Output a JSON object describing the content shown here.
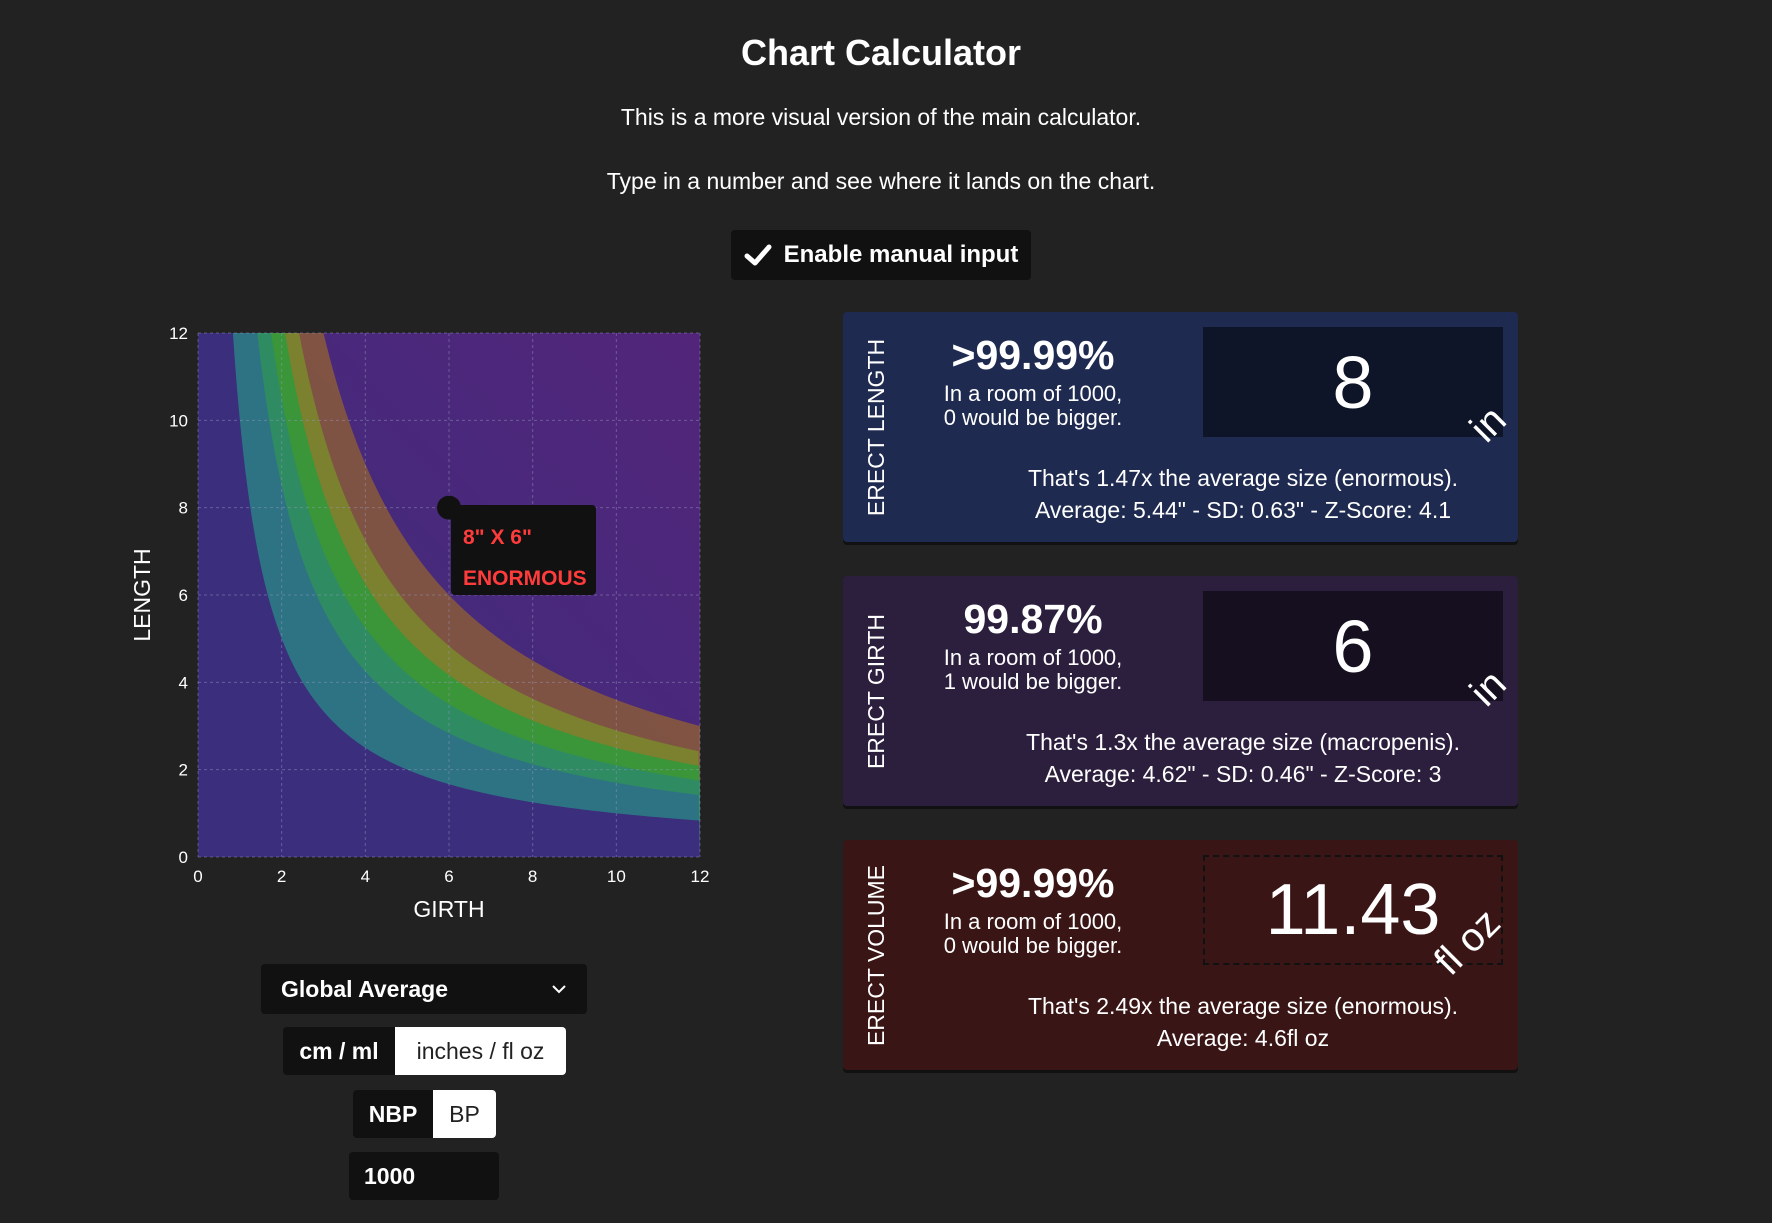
{
  "header": {
    "title": "Chart Calculator",
    "line1": "This is a more visual version of the main calculator.",
    "line2": "Type in a number and see where it lands on the chart.",
    "manual_button": "Enable manual input"
  },
  "chart_data": {
    "type": "area",
    "title": "",
    "xlabel": "GIRTH",
    "ylabel": "LENGTH",
    "xlim": [
      0,
      12
    ],
    "ylim": [
      0,
      12
    ],
    "xticks": [
      "0",
      "2",
      "4",
      "6",
      "8",
      "10",
      "12"
    ],
    "yticks": [
      "0",
      "2",
      "4",
      "6",
      "8",
      "10",
      "12"
    ],
    "grid": true,
    "bands": [
      {
        "color": "#2f5b83",
        "boundary_product": 10
      },
      {
        "color": "#2e6f8a",
        "boundary_product": 17
      },
      {
        "color": "#2e8a6a",
        "boundary_product": 21
      },
      {
        "color": "#2f9a3a",
        "boundary_product": 25
      },
      {
        "color": "#7a8a2a",
        "boundary_product": 29
      },
      {
        "color": "#8a5a3a",
        "boundary_product": 36
      }
    ],
    "background_colors": [
      "#3b2e7d",
      "#52257a"
    ],
    "point": {
      "x": 6,
      "y": 8,
      "label": "8\" X 6\"",
      "category": "ENORMOUS"
    }
  },
  "controls": {
    "dataset": "Global Average",
    "unit_options": [
      "cm / ml",
      "inches / fl oz"
    ],
    "unit_selected": "inches / fl oz",
    "bp_options": [
      "NBP",
      "BP"
    ],
    "bp_selected": "BP",
    "room_size": "1000"
  },
  "cards": {
    "length": {
      "label": "ERECT LENGTH",
      "percentile": ">99.99%",
      "room_line1": "In a room of 1000,",
      "room_line2": "0 would be bigger.",
      "value": "8",
      "unit": "in",
      "desc_line1": "That's 1.47x the average size (enormous).",
      "desc_line2": "Average: 5.44\" - SD: 0.63\" - Z-Score: 4.1",
      "bg": "#1e2a4f",
      "box_bg": "#0e1528"
    },
    "girth": {
      "label": "ERECT GIRTH",
      "percentile": "99.87%",
      "room_line1": "In a room of 1000,",
      "room_line2": "1 would be bigger.",
      "value": "6",
      "unit": "in",
      "desc_line1": "That's 1.3x the average size (macropenis).",
      "desc_line2": "Average: 4.62\" - SD: 0.46\" - Z-Score: 3",
      "bg": "#2c1f3e",
      "box_bg": "#160f1f"
    },
    "volume": {
      "label": "ERECT VOLUME",
      "percentile": ">99.99%",
      "room_line1": "In a room of 1000,",
      "room_line2": "0 would be bigger.",
      "value": "11.43",
      "unit": "fl oz",
      "desc_line1": "That's 2.49x the average size (enormous).",
      "desc_line2": "Average: 4.6fl oz",
      "bg": "#3a1515",
      "box_bg": "#3a1515"
    }
  }
}
